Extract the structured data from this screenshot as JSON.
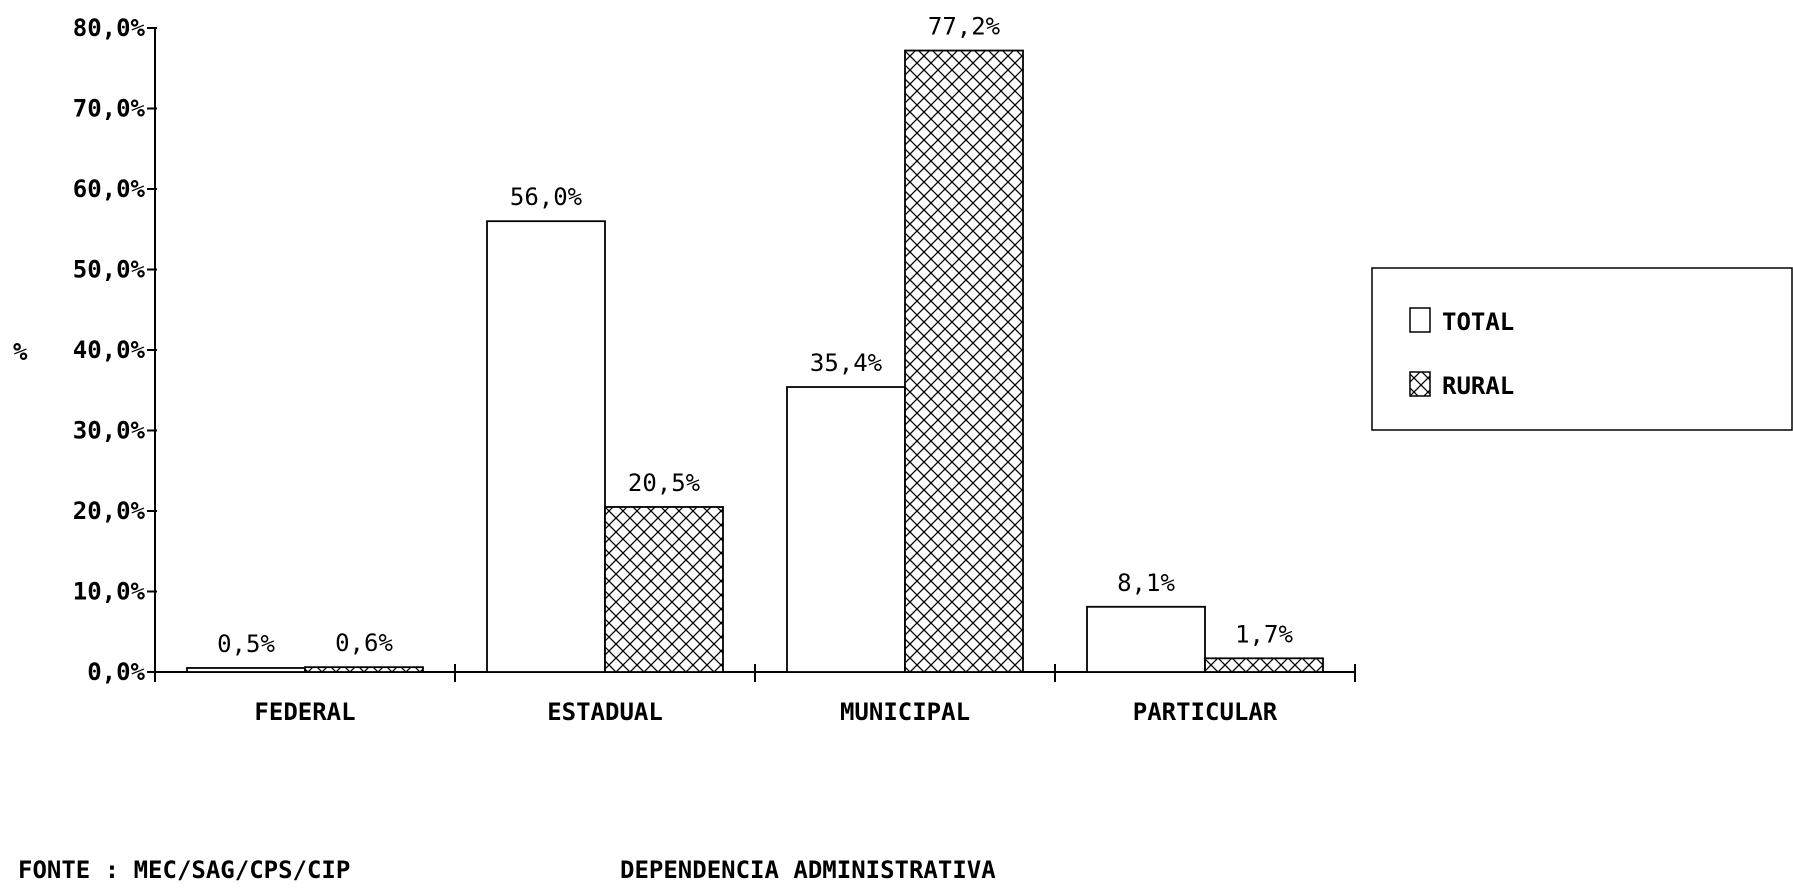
{
  "chart_data": {
    "type": "bar",
    "categories": [
      "FEDERAL",
      "ESTADUAL",
      "MUNICIPAL",
      "PARTICULAR"
    ],
    "series": [
      {
        "name": "TOTAL",
        "values": [
          0.5,
          56.0,
          35.4,
          8.1
        ],
        "labels": [
          "0,5%",
          "56,0%",
          "35,4%",
          "8,1%"
        ],
        "fill": "none"
      },
      {
        "name": "RURAL",
        "values": [
          0.6,
          20.5,
          77.2,
          1.7
        ],
        "labels": [
          "0,6%",
          "20,5%",
          "77,2%",
          "1,7%"
        ],
        "fill": "crosshatch"
      }
    ],
    "ylim": [
      0,
      80
    ],
    "yticks": [
      0,
      10,
      20,
      30,
      40,
      50,
      60,
      70,
      80
    ],
    "ytick_labels": [
      "0,0%",
      "10,0%",
      "20,0%",
      "30,0%",
      "40,0%",
      "50,0%",
      "60,0%",
      "70,0%",
      "80,0%"
    ],
    "ylabel": "%",
    "xlabel": "DEPENDENCIA ADMINISTRATIVA",
    "grid": false,
    "legend_position": "right"
  },
  "footer": {
    "source": "FONTE : MEC/SAG/CPS/CIP"
  },
  "colors": {
    "ink": "#000000",
    "background": "#ffffff"
  }
}
